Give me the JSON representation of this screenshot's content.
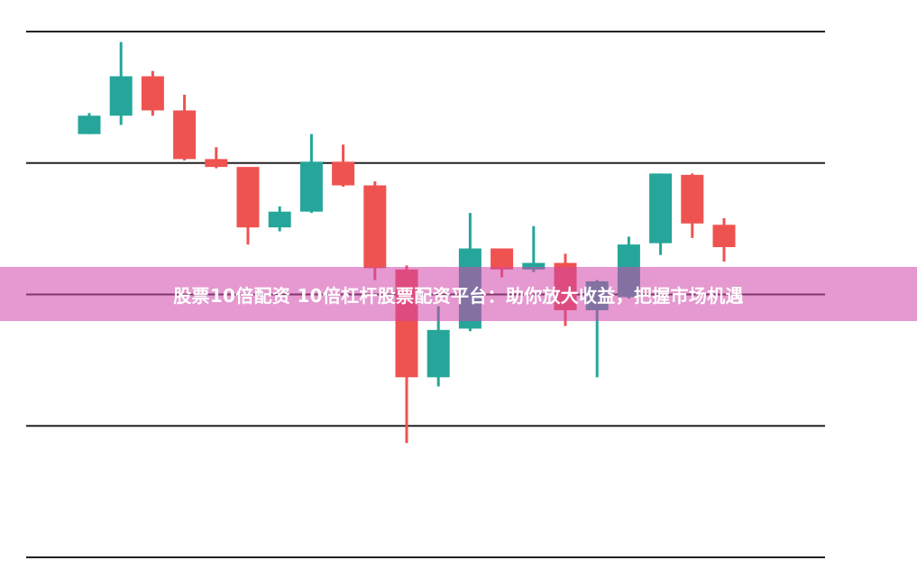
{
  "chart_data": {
    "type": "candlestick",
    "title": "",
    "xlabel": "",
    "ylabel": "",
    "ylim": [
      0,
      4
    ],
    "grid": true,
    "gridlines_y": [
      0,
      1,
      2,
      3,
      4
    ],
    "colors": {
      "up": "#26a69a",
      "down": "#ef5350",
      "grid": "#222222"
    },
    "candles": [
      {
        "open": 3.22,
        "close": 3.36,
        "high": 3.38,
        "low": 3.22
      },
      {
        "open": 3.36,
        "close": 3.66,
        "high": 3.92,
        "low": 3.29
      },
      {
        "open": 3.66,
        "close": 3.4,
        "high": 3.7,
        "low": 3.36
      },
      {
        "open": 3.4,
        "close": 3.03,
        "high": 3.52,
        "low": 3.02
      },
      {
        "open": 3.03,
        "close": 2.97,
        "high": 3.12,
        "low": 2.96
      },
      {
        "open": 2.97,
        "close": 2.51,
        "high": 2.97,
        "low": 2.38
      },
      {
        "open": 2.51,
        "close": 2.63,
        "high": 2.67,
        "low": 2.48
      },
      {
        "open": 2.63,
        "close": 3.01,
        "high": 3.22,
        "low": 2.62
      },
      {
        "open": 3.01,
        "close": 2.83,
        "high": 3.14,
        "low": 2.82
      },
      {
        "open": 2.83,
        "close": 2.2,
        "high": 2.86,
        "low": 2.11
      },
      {
        "open": 2.19,
        "close": 1.37,
        "high": 2.22,
        "low": 0.87
      },
      {
        "open": 1.37,
        "close": 1.73,
        "high": 1.91,
        "low": 1.3
      },
      {
        "open": 1.74,
        "close": 2.35,
        "high": 2.62,
        "low": 1.72
      },
      {
        "open": 2.35,
        "close": 2.19,
        "high": 2.35,
        "low": 2.13
      },
      {
        "open": 2.19,
        "close": 2.24,
        "high": 2.52,
        "low": 2.17
      },
      {
        "open": 2.24,
        "close": 1.88,
        "high": 2.31,
        "low": 1.76
      },
      {
        "open": 1.88,
        "close": 2.1,
        "high": 2.11,
        "low": 1.37
      },
      {
        "open": 1.98,
        "close": 2.38,
        "high": 2.44,
        "low": 1.97
      },
      {
        "open": 2.39,
        "close": 2.92,
        "high": 2.92,
        "low": 2.3
      },
      {
        "open": 2.91,
        "close": 2.54,
        "high": 2.92,
        "low": 2.43
      },
      {
        "open": 2.53,
        "close": 2.36,
        "high": 2.58,
        "low": 2.25
      }
    ]
  },
  "banner": {
    "text": "股票10倍配资 10倍杠杆股票配资平台：助你放大收益，把握市场机遇",
    "color": "#e499cf"
  }
}
